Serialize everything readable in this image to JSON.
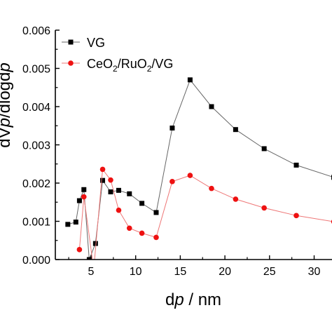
{
  "chart_data": {
    "type": "line",
    "xlabel": {
      "main": "d",
      "italic": "p",
      "unit": " / nm"
    },
    "ylabel": {
      "prefix": "dV",
      "italic_a": "p",
      "middle": "/dlogd",
      "italic_b": "p"
    },
    "xlim": [
      1,
      32
    ],
    "ylim": [
      0,
      0.006
    ],
    "x_ticks": [
      5,
      10,
      15,
      20,
      25,
      30
    ],
    "x_tick_labels": [
      "5",
      "10",
      "15",
      "20",
      "25",
      "30"
    ],
    "y_ticks": [
      0,
      0.001,
      0.002,
      0.003,
      0.004,
      0.005,
      0.006
    ],
    "y_tick_labels": [
      "0.000",
      "0.001",
      "0.002",
      "0.003",
      "0.004",
      "0.005",
      "0.006"
    ],
    "legend_position": "top-left",
    "series": [
      {
        "name": "VG",
        "marker": "square",
        "color": "#000000",
        "line_color": "#666666",
        "points": [
          [
            2.4,
            0.00092
          ],
          [
            3.3,
            0.00098
          ],
          [
            3.7,
            0.00154
          ],
          [
            4.2,
            0.00183
          ],
          [
            4.8,
            0.0
          ],
          [
            5.5,
            0.00042
          ],
          [
            6.3,
            0.00207
          ],
          [
            7.2,
            0.00177
          ],
          [
            8.1,
            0.00181
          ],
          [
            9.3,
            0.00172
          ],
          [
            10.7,
            0.00147
          ],
          [
            12.3,
            0.00123
          ],
          [
            14.1,
            0.00344
          ],
          [
            16.1,
            0.0047
          ],
          [
            18.5,
            0.004
          ],
          [
            21.2,
            0.0034
          ],
          [
            24.4,
            0.0029
          ],
          [
            28.0,
            0.00247
          ],
          [
            32.2,
            0.00215
          ]
        ]
      },
      {
        "name_parts": [
          "CeO",
          "2",
          "/RuO",
          "2",
          "/VG"
        ],
        "marker": "circle",
        "color": "#ee1111",
        "line_color": "#ee7777",
        "points": [
          [
            3.7,
            0.00026
          ],
          [
            4.2,
            0.00164
          ],
          [
            5.3,
            -0.00025
          ],
          [
            6.3,
            0.00236
          ],
          [
            7.2,
            0.00208
          ],
          [
            8.1,
            0.00129
          ],
          [
            9.3,
            0.00082
          ],
          [
            10.7,
            0.00069
          ],
          [
            12.3,
            0.00058
          ],
          [
            14.1,
            0.00204
          ],
          [
            16.1,
            0.0022
          ],
          [
            18.5,
            0.00186
          ],
          [
            21.2,
            0.00158
          ],
          [
            24.4,
            0.00135
          ],
          [
            28.0,
            0.00115
          ],
          [
            32.2,
            0.00099
          ]
        ]
      }
    ]
  }
}
